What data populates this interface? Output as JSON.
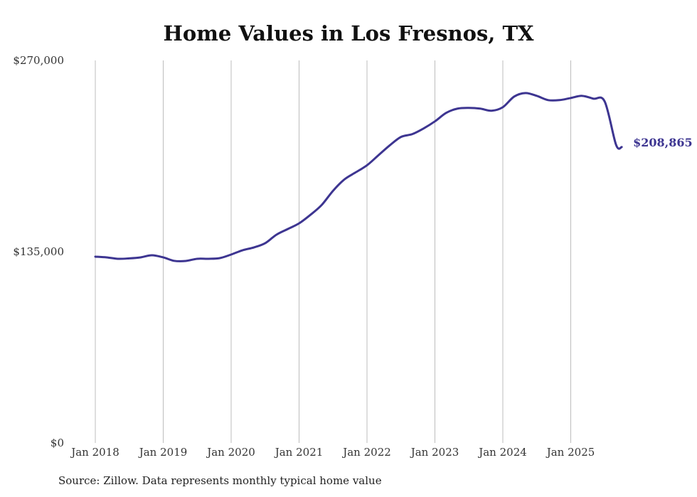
{
  "chart_data": {
    "type": "line",
    "title": "Home Values in Los Fresnos, TX",
    "source": "Source: Zillow. Data represents monthly typical home value",
    "y_ticks": [
      "$270,000",
      "$135,000",
      "$0"
    ],
    "y_tick_values": [
      270000,
      135000,
      0
    ],
    "ylim": [
      0,
      270000
    ],
    "x_ticks": [
      "Jan 2018",
      "Jan 2019",
      "Jan 2020",
      "Jan 2021",
      "Jan 2022",
      "Jan 2023",
      "Jan 2024",
      "Jan 2025"
    ],
    "x_tick_dates": [
      "2018-01",
      "2019-01",
      "2020-01",
      "2021-01",
      "2022-01",
      "2023-01",
      "2024-01",
      "2025-01"
    ],
    "xlim": [
      "2018-01",
      "2025-10"
    ],
    "grid": "vertical",
    "line_color": "#3d3591",
    "end_label": "$208,865",
    "series": [
      {
        "x": [
          "2018-01",
          "2018-03",
          "2018-05",
          "2018-07",
          "2018-09",
          "2018-11",
          "2019-01",
          "2019-03",
          "2019-05",
          "2019-07",
          "2019-09",
          "2019-11",
          "2020-01",
          "2020-03",
          "2020-05",
          "2020-07",
          "2020-09",
          "2020-11",
          "2021-01",
          "2021-03",
          "2021-05",
          "2021-07",
          "2021-09",
          "2021-11",
          "2022-01",
          "2022-03",
          "2022-05",
          "2022-07",
          "2022-09",
          "2022-11",
          "2023-01",
          "2023-03",
          "2023-05",
          "2023-07",
          "2023-09",
          "2023-11",
          "2024-01",
          "2024-03",
          "2024-05",
          "2024-07",
          "2024-09",
          "2024-11",
          "2025-01",
          "2025-03",
          "2025-05",
          "2025-07",
          "2025-09",
          "2025-10"
        ],
        "values": [
          131500,
          131000,
          130000,
          130300,
          131000,
          132500,
          131000,
          128500,
          128500,
          130000,
          130000,
          130500,
          133000,
          136000,
          138000,
          141000,
          147000,
          151000,
          155000,
          161000,
          168000,
          178000,
          186000,
          191000,
          196000,
          203000,
          210000,
          216000,
          218000,
          222000,
          227000,
          233000,
          236000,
          236500,
          236000,
          234500,
          237000,
          244500,
          247000,
          245000,
          242000,
          242000,
          243500,
          245000,
          243000,
          241000,
          210500,
          208865
        ]
      }
    ]
  }
}
